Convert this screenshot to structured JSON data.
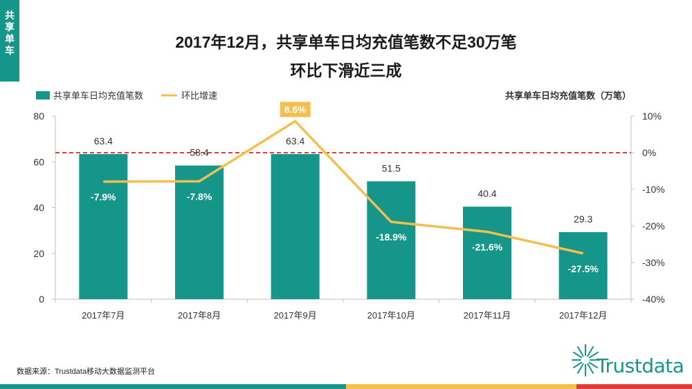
{
  "side_tab": {
    "chars": [
      "共",
      "享",
      "单",
      "车"
    ]
  },
  "title_line1": "2017年12月，共享单车日均充值笔数不足30万笔",
  "title_line2": "环比下滑近三成",
  "source": "数据来源：Trustdata移动大数据监测平台",
  "logo_text": "Trustdata",
  "colors": {
    "bar": "#16958a",
    "line": "#f5bf4f",
    "ref_line": "#e23b3b",
    "side_tab": "#16958a",
    "bottom_bar": [
      "#16958a",
      "#16958a",
      "#16958a",
      "#f5bf4f",
      "#f5bf4f",
      "#e23b3b"
    ]
  },
  "chart_data": {
    "type": "bar+line",
    "categories": [
      "2017年7月",
      "2017年8月",
      "2017年9月",
      "2017年10月",
      "2017年11月",
      "2017年12月"
    ],
    "legend": {
      "bar_label": "共享单车日均充值笔数",
      "line_label": "环比增速",
      "position": "top-left"
    },
    "right_unit_label": "共享单车日均充值笔数（万笔）",
    "series": [
      {
        "name": "共享单车日均充值笔数",
        "kind": "bar",
        "axis": "left",
        "values": [
          63.4,
          58.4,
          63.4,
          51.5,
          40.4,
          29.3
        ],
        "labels": [
          "63.4",
          "58.4",
          "63.4",
          "51.5",
          "40.4",
          "29.3"
        ]
      },
      {
        "name": "环比增速",
        "kind": "line",
        "axis": "right",
        "values": [
          -7.9,
          -7.8,
          8.6,
          -18.9,
          -21.6,
          -27.5
        ],
        "labels": [
          "-7.9%",
          "-7.8%",
          "8.6%",
          "-18.9%",
          "-21.6%",
          "-27.5%"
        ]
      }
    ],
    "y_left": {
      "min": 0,
      "max": 80,
      "ticks": [
        "0",
        "20",
        "40",
        "60",
        "80"
      ]
    },
    "y_right": {
      "min": -40,
      "max": 10,
      "ticks": [
        "-40%",
        "-30%",
        "-20%",
        "-10%",
        "0%",
        "10%"
      ]
    },
    "reference_line": {
      "axis": "right",
      "value": 0,
      "style": "dashed"
    },
    "highlight_point_index": 2,
    "grid": false
  }
}
